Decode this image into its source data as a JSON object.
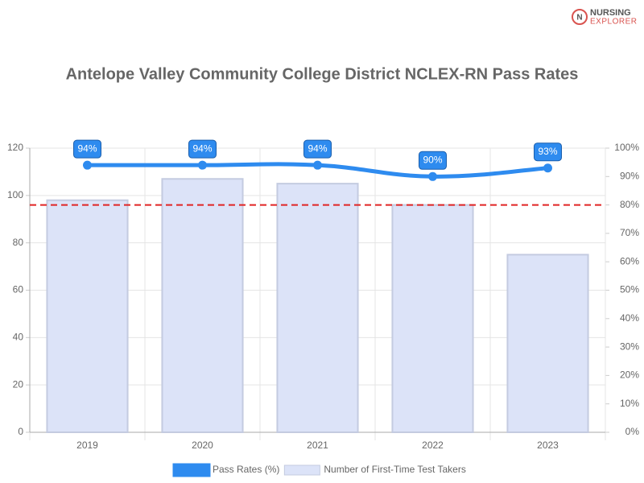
{
  "logo": [
    "NURSING",
    "EXPLORER"
  ],
  "chart_data": {
    "type": "combo",
    "title": "Antelope Valley Community College District NCLEX-RN Pass Rates",
    "categories": [
      "2019",
      "2020",
      "2021",
      "2022",
      "2023"
    ],
    "series": [
      {
        "name": "Pass Rates (%)",
        "type": "line",
        "axis": "y2",
        "color": "#2e8bef",
        "values": [
          94,
          94,
          94,
          90,
          93
        ],
        "value_labels": [
          "94%",
          "94%",
          "94%",
          "90%",
          "93%"
        ]
      },
      {
        "name": "Number of First-Time Test Takers",
        "type": "bar",
        "color": "#dce3f8",
        "border": "#c4cbe0",
        "values": [
          98,
          107,
          105,
          96,
          75
        ]
      }
    ],
    "ylim": [
      0,
      120
    ],
    "yticks": [
      0,
      20,
      40,
      60,
      80,
      100,
      120
    ],
    "y2lim": [
      0,
      100
    ],
    "y2ticks": [
      {
        "value": 0,
        "label": "0%"
      },
      {
        "value": 10,
        "label": "10%"
      },
      {
        "value": 20,
        "label": "20%"
      },
      {
        "value": 30,
        "label": "30%"
      },
      {
        "value": 40,
        "label": "40%"
      },
      {
        "value": 50,
        "label": "50%"
      },
      {
        "value": 60,
        "label": "60%"
      },
      {
        "value": 70,
        "label": "70%"
      },
      {
        "value": 80,
        "label": "80%"
      },
      {
        "value": 90,
        "label": "90%"
      },
      {
        "value": 100,
        "label": "100%"
      }
    ],
    "reference_line": {
      "value": 80,
      "axis": "y2",
      "color": "#e02424"
    },
    "grid": true,
    "legend": "bottom"
  }
}
